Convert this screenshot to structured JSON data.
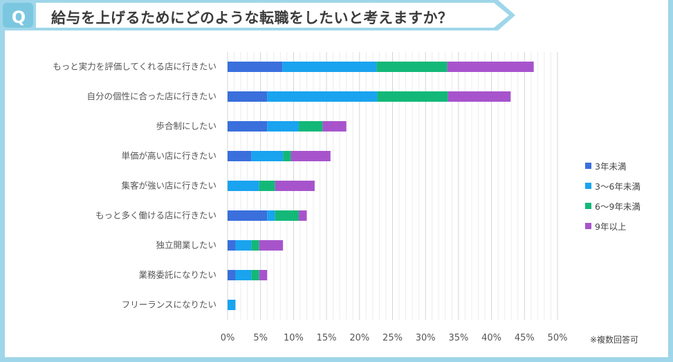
{
  "header": {
    "badge": "Q",
    "title": "給与を上げるためにどのような転職をしたいと考えますか？"
  },
  "note": "※複数回答可",
  "colors": {
    "frame": "#9fd6ea",
    "badge_bg": "#7cc7e0",
    "series": [
      "#3a6fdc",
      "#1aa3ef",
      "#13b878",
      "#a754cc"
    ]
  },
  "chart_data": {
    "type": "bar",
    "orientation": "horizontal",
    "stacked": true,
    "categories": [
      "もっと実力を評価してくれる店に行きたい",
      "自分の個性に合った店に行きたい",
      "歩合制にしたい",
      "単価が高い店に行きたい",
      "集客が強い店に行きたい",
      "もっと多く働ける店に行きたい",
      "独立開業したい",
      "業務委託になりたい",
      "フリーランスになりたい"
    ],
    "series": [
      {
        "name": "3年未満",
        "values": [
          8.3,
          6.0,
          6.0,
          3.6,
          0.0,
          6.0,
          1.2,
          1.2,
          0.0
        ]
      },
      {
        "name": "3～6年未満",
        "values": [
          14.3,
          16.7,
          4.8,
          4.8,
          4.8,
          1.2,
          2.4,
          2.4,
          1.2
        ]
      },
      {
        "name": "6～9年未満",
        "values": [
          10.7,
          10.7,
          3.6,
          1.2,
          2.4,
          3.6,
          1.2,
          1.2,
          0.0
        ]
      },
      {
        "name": "9年以上",
        "values": [
          13.1,
          9.5,
          3.6,
          6.0,
          6.0,
          1.2,
          3.6,
          1.2,
          0.0
        ]
      }
    ],
    "x_ticks": [
      "0%",
      "5%",
      "10%",
      "15%",
      "20%",
      "25%",
      "30%",
      "35%",
      "40%",
      "45%",
      "50%"
    ],
    "xlim": [
      0,
      50
    ],
    "grid": true,
    "legend_position": "right"
  }
}
